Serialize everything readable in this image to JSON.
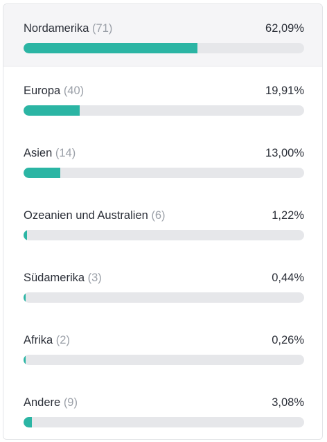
{
  "accent_color": "#2bb5a4",
  "regions": [
    {
      "name": "Nordamerika",
      "count": "(71)",
      "percent_label": "62,09%",
      "percent": 62.09,
      "selected": true
    },
    {
      "name": "Europa",
      "count": "(40)",
      "percent_label": "19,91%",
      "percent": 19.91,
      "selected": false
    },
    {
      "name": "Asien",
      "count": "(14)",
      "percent_label": "13,00%",
      "percent": 13.0,
      "selected": false
    },
    {
      "name": "Ozeanien und Australien",
      "count": "(6)",
      "percent_label": "1,22%",
      "percent": 1.22,
      "selected": false
    },
    {
      "name": "Südamerika",
      "count": "(3)",
      "percent_label": "0,44%",
      "percent": 0.44,
      "selected": false
    },
    {
      "name": "Afrika",
      "count": "(2)",
      "percent_label": "0,26%",
      "percent": 0.26,
      "selected": false
    },
    {
      "name": "Andere",
      "count": "(9)",
      "percent_label": "3,08%",
      "percent": 3.08,
      "selected": false
    }
  ]
}
